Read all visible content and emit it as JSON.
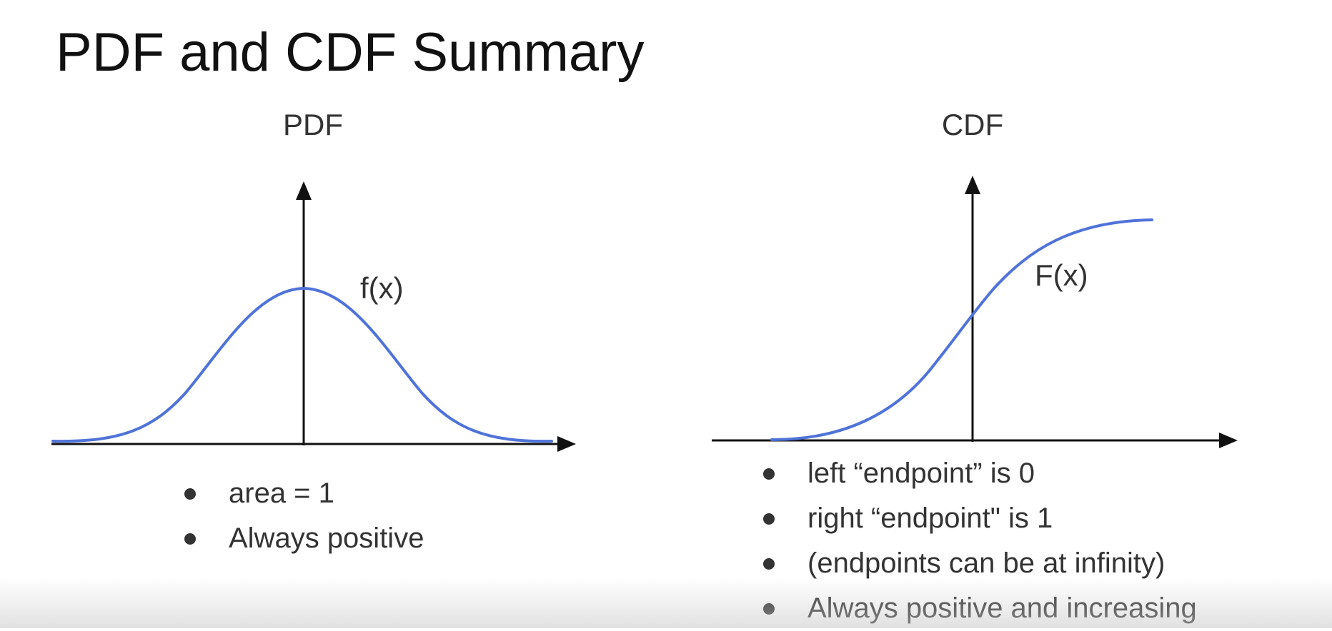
{
  "slide": {
    "title": "PDF and CDF Summary"
  },
  "pdf": {
    "title": "PDF",
    "curve_label": "f(x)",
    "bullets": [
      "area = 1",
      "Always positive"
    ]
  },
  "cdf": {
    "title": "CDF",
    "curve_label": "F(x)",
    "bullets": [
      "left “endpoint” is 0",
      "right “endpoint\" is 1",
      "(endpoints can be at infinity)",
      "Always positive and increasing"
    ]
  },
  "colors": {
    "curve": "#4f73d8",
    "axis": "#111111",
    "text": "#333333"
  }
}
